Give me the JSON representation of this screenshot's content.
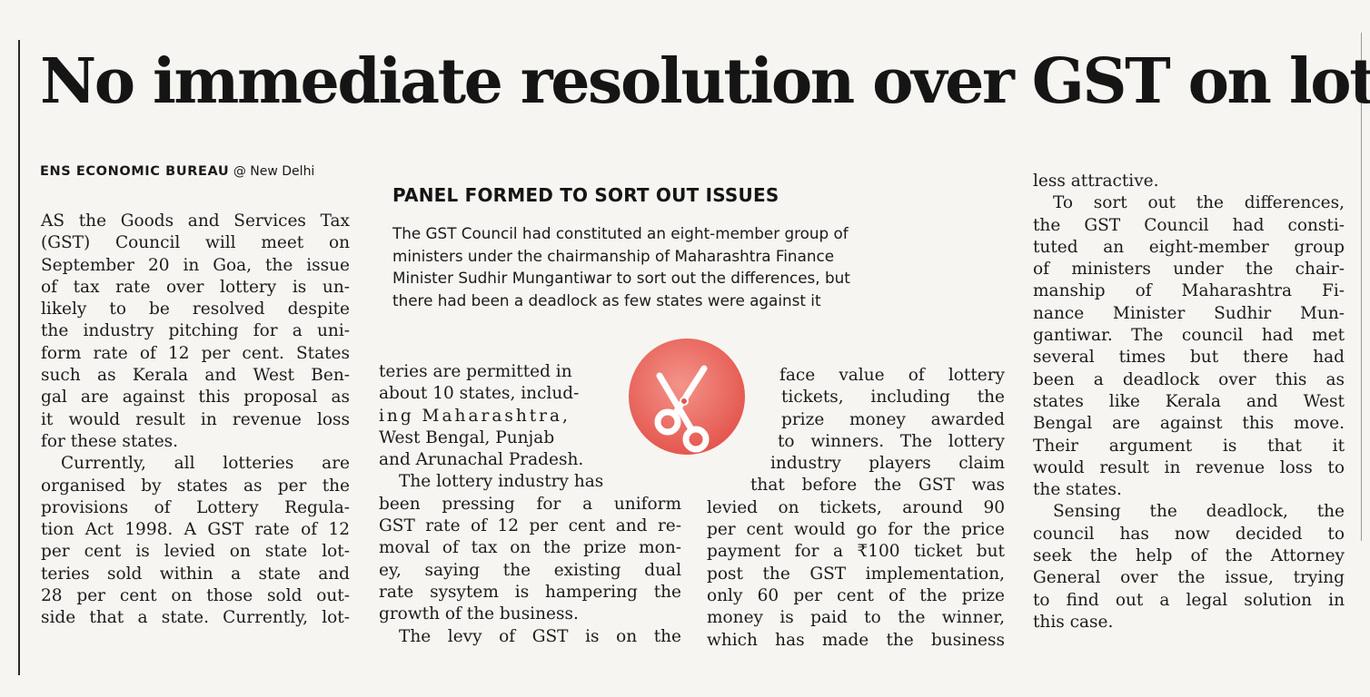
{
  "article": {
    "headline": "No immediate resolution over GST on lottery",
    "byline": {
      "bureau": "ENS ECONOMIC BUREAU",
      "location": "@ New Delhi"
    },
    "panel": {
      "heading": "PANEL FORMED TO SORT OUT ISSUES",
      "lines": [
        "The GST Council had constituted an eight-member group of",
        "ministers under the chairmanship of Maharashtra Finance",
        "Minister Sudhir Mungantiwar to sort out the differences, but",
        "there had been a deadlock as few states were against it"
      ]
    },
    "icon": "scissors-icon",
    "accent_color": "#e85d55",
    "columns": [
      [
        "AS the Goods and Services Tax",
        "(GST) Council will meet on",
        "September 20 in Goa, the issue",
        "of tax rate over lottery is un-",
        "likely to be resolved despite",
        "the industry pitching for a uni-",
        "form rate of 12 per cent. States",
        "such as Kerala and West Ben-",
        "gal are against this proposal as",
        "it would result in revenue loss",
        "for these states.",
        "Currently, all lotteries are",
        "organised by states as per the",
        "provisions of Lottery Regula-",
        "tion Act 1998. A GST rate of 12",
        "per cent is levied on state lot-",
        "teries sold within a state and",
        "28 per cent on those sold out-",
        "side that a state. Currently, lot-"
      ],
      [
        "teries are permitted in",
        "about 10 states, includ-",
        "ing Maharashtra,",
        "West Bengal, Punjab",
        "and Arunachal Pradesh.",
        "The lottery industry has",
        "been pressing for a uniform",
        "GST rate of 12 per cent and re-",
        "moval of tax on the prize mon-",
        "ey, saying the existing dual",
        "rate sysytem is hampering the",
        "growth of the business.",
        "The levy of GST is on the"
      ],
      [
        "face value of lottery",
        "tickets, including the",
        "prize money awarded",
        "to winners. The lottery",
        "industry players claim",
        "that before the GST was",
        "levied on tickets, around 90",
        "per cent would go for the price",
        "payment for a ₹100 ticket but",
        "post the GST implementation,",
        "only 60 per cent of the prize",
        "money is paid to the winner,",
        "which has made the business"
      ],
      [
        "less attractive.",
        "To sort out the differences,",
        "the GST Council had consti-",
        "tuted an eight-member group",
        "of ministers under the chair-",
        "manship of Maharashtra Fi-",
        "nance Minister Sudhir Mun-",
        "gantiwar. The council had met",
        "several times but there had",
        "been a deadlock over this as",
        "states like Kerala and West",
        "Bengal are against this move.",
        "Their argument is that it",
        "would result in revenue loss to",
        "the states.",
        "Sensing the deadlock, the",
        "council has now decided to",
        "seek the help of the Attorney",
        "General over the issue, trying",
        "to find out a legal solution in",
        "this case."
      ]
    ]
  }
}
